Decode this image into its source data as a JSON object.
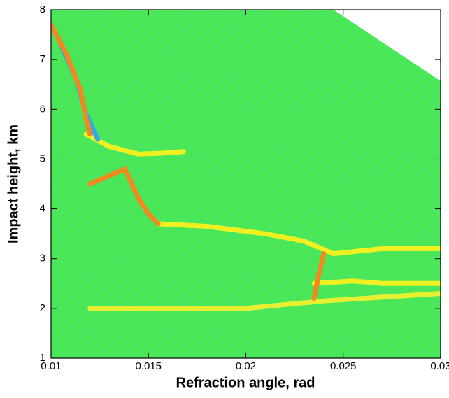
{
  "chart_data": {
    "type": "field",
    "xlabel": "Refraction angle, rad",
    "ylabel": "Impact height, km",
    "xlim": [
      0.01,
      0.03
    ],
    "ylim": [
      1,
      8
    ],
    "xticks": [
      0.01,
      0.015,
      0.02,
      0.025,
      0.03
    ],
    "yticks": [
      1,
      2,
      3,
      4,
      5,
      6,
      7,
      8
    ],
    "background_color": "#4ee84a",
    "domain_edge": {
      "x": [
        0.0245,
        0.03
      ],
      "y": [
        8,
        6.55
      ]
    },
    "ridges": [
      {
        "color": "#f0f020",
        "x": [
          0.0118,
          0.013,
          0.0145,
          0.0158,
          0.0168
        ],
        "y": [
          5.5,
          5.25,
          5.1,
          5.12,
          5.15
        ]
      },
      {
        "color": "#f0f020",
        "x": [
          0.0155,
          0.018,
          0.021,
          0.023,
          0.0245,
          0.027,
          0.03
        ],
        "y": [
          3.7,
          3.65,
          3.5,
          3.35,
          3.1,
          3.2,
          3.2
        ]
      },
      {
        "color": "#e6f030",
        "x": [
          0.012,
          0.016,
          0.02,
          0.024,
          0.03
        ],
        "y": [
          2.0,
          2.0,
          2.0,
          2.15,
          2.3
        ]
      },
      {
        "color": "#f0f020",
        "x": [
          0.0235,
          0.0255,
          0.027,
          0.03
        ],
        "y": [
          2.5,
          2.55,
          2.5,
          2.5
        ]
      },
      {
        "color": "#3aa6e6",
        "x": [
          0.0105,
          0.0113,
          0.0118,
          0.0124
        ],
        "y": [
          7.3,
          6.6,
          5.9,
          5.4
        ]
      },
      {
        "color": "#f08a20",
        "x": [
          0.01,
          0.0108,
          0.0115,
          0.0118,
          0.012
        ],
        "y": [
          7.7,
          7.1,
          6.4,
          5.8,
          5.5
        ]
      },
      {
        "color": "#f08a20",
        "x": [
          0.012,
          0.0132,
          0.0138,
          0.0145,
          0.015,
          0.0155
        ],
        "y": [
          4.5,
          4.7,
          4.8,
          4.2,
          3.9,
          3.7
        ]
      },
      {
        "color": "#f08a20",
        "x": [
          0.0235,
          0.0237,
          0.024
        ],
        "y": [
          2.2,
          2.6,
          3.1
        ]
      }
    ]
  }
}
